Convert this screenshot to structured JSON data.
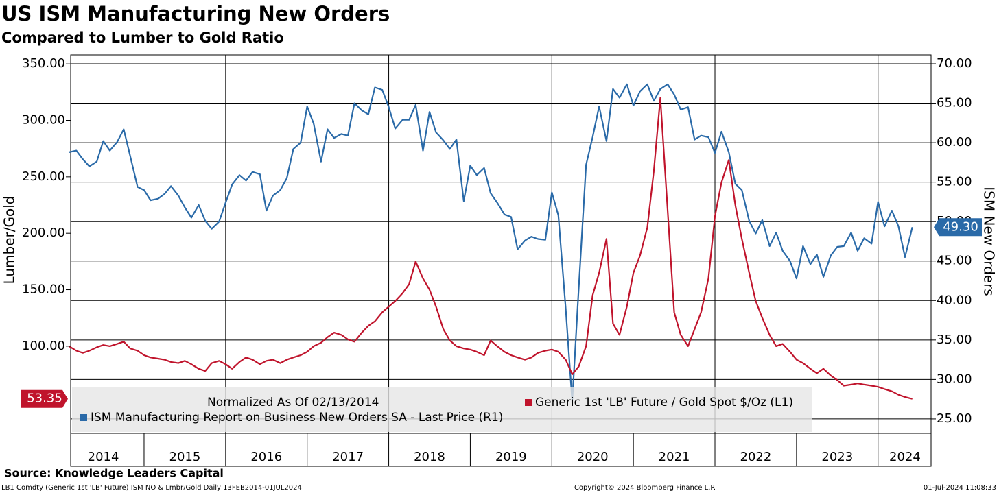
{
  "chart_data": {
    "type": "line",
    "title": "US ISM Manufacturing New Orders",
    "subtitle": "Compared to Lumber to Gold Ratio",
    "y_label": "Lumber/Gold",
    "y2_label": "ISM New Orders",
    "legend_note": "Normalized As Of 02/13/2014",
    "source": "Source: Knowledge Leaders Capital",
    "footer_left": "LB1 Comdty (Generic 1st 'LB' Future) ISM NO & Lmbr/Gold  Daily 13FEB2014-01JUL2024",
    "footer_center": "Copyright© 2024 Bloomberg Finance L.P.",
    "footer_right": "01-Jul-2024 11:08:33",
    "x": [
      2014.08,
      2014.17,
      2014.25,
      2014.33,
      2014.42,
      2014.5,
      2014.58,
      2014.67,
      2014.75,
      2014.83,
      2014.92,
      2015,
      2015.08,
      2015.17,
      2015.25,
      2015.33,
      2015.42,
      2015.5,
      2015.58,
      2015.67,
      2015.75,
      2015.83,
      2015.92,
      2016,
      2016.08,
      2016.17,
      2016.25,
      2016.33,
      2016.42,
      2016.5,
      2016.58,
      2016.67,
      2016.75,
      2016.83,
      2016.92,
      2017,
      2017.08,
      2017.17,
      2017.25,
      2017.33,
      2017.42,
      2017.5,
      2017.58,
      2017.67,
      2017.75,
      2017.83,
      2017.92,
      2018,
      2018.08,
      2018.17,
      2018.25,
      2018.33,
      2018.42,
      2018.5,
      2018.58,
      2018.67,
      2018.75,
      2018.83,
      2018.92,
      2019,
      2019.08,
      2019.17,
      2019.25,
      2019.33,
      2019.42,
      2019.5,
      2019.58,
      2019.67,
      2019.75,
      2019.83,
      2019.92,
      2020,
      2020.08,
      2020.17,
      2020.25,
      2020.33,
      2020.42,
      2020.5,
      2020.58,
      2020.67,
      2020.75,
      2020.83,
      2020.92,
      2021,
      2021.08,
      2021.17,
      2021.25,
      2021.33,
      2021.42,
      2021.5,
      2021.58,
      2021.67,
      2021.75,
      2021.83,
      2021.92,
      2022,
      2022.08,
      2022.17,
      2022.25,
      2022.33,
      2022.42,
      2022.5,
      2022.58,
      2022.67,
      2022.75,
      2022.83,
      2022.92,
      2023,
      2023.08,
      2023.17,
      2023.25,
      2023.33,
      2023.42,
      2023.5,
      2023.58,
      2023.67,
      2023.75,
      2023.83,
      2023.92,
      2024,
      2024.08,
      2024.17,
      2024.25,
      2024.33,
      2024.42
    ],
    "series": [
      {
        "name": "ISM Manufacturing Report on Business New Orders SA - Last Price (R1)",
        "color": "#2a6aa8",
        "axis": "y2",
        "last_label": "49.30",
        "values": [
          58.8,
          59.0,
          57.9,
          57.0,
          57.6,
          60.2,
          59.0,
          60.1,
          61.7,
          58.3,
          54.4,
          54.0,
          52.7,
          52.9,
          53.5,
          54.5,
          53.3,
          51.8,
          50.5,
          52.1,
          50.1,
          49.1,
          50.0,
          52.4,
          54.7,
          55.9,
          55.2,
          56.3,
          56.0,
          51.4,
          53.3,
          54.0,
          55.5,
          59.2,
          60.0,
          64.6,
          62.4,
          57.6,
          61.7,
          60.6,
          61.1,
          60.9,
          65.0,
          64.1,
          63.6,
          67.0,
          66.7,
          64.5,
          61.8,
          62.9,
          62.9,
          64.8,
          59.0,
          63.9,
          61.3,
          60.3,
          59.2,
          60.4,
          52.6,
          57.1,
          55.9,
          56.8,
          53.6,
          52.4,
          50.9,
          50.6,
          46.5,
          47.6,
          48.1,
          47.8,
          47.7,
          53.7,
          50.8,
          39.0,
          27.2,
          41.6,
          57.2,
          60.7,
          64.6,
          60.2,
          66.8,
          65.7,
          67.4,
          64.7,
          66.5,
          67.4,
          65.3,
          66.8,
          67.4,
          66.1,
          64.2,
          64.5,
          60.4,
          60.9,
          60.7,
          58.7,
          61.4,
          58.8,
          54.8,
          54.0,
          50.1,
          48.5,
          50.2,
          46.9,
          48.6,
          46.3,
          45.0,
          42.8,
          46.9,
          44.6,
          45.8,
          43.0,
          45.7,
          46.8,
          46.9,
          48.6,
          46.3,
          47.9,
          47.2,
          52.5,
          49.4,
          51.4,
          49.4,
          45.5,
          49.3
        ]
      },
      {
        "name": "Generic 1st 'LB' Future / Gold Spot $/Oz (L1)",
        "color": "#c0142c",
        "axis": "y",
        "last_label": "53.35",
        "values": [
          100,
          96,
          94,
          96,
          99,
          101,
          100,
          102,
          104,
          98,
          96,
          92,
          90,
          89,
          88,
          86,
          85,
          87,
          84,
          80,
          78,
          85,
          87,
          84,
          80,
          86,
          90,
          88,
          84,
          87,
          88,
          85,
          88,
          90,
          92,
          95,
          100,
          103,
          108,
          112,
          110,
          106,
          104,
          112,
          118,
          122,
          130,
          135,
          140,
          147,
          155,
          175,
          160,
          150,
          135,
          115,
          105,
          100,
          98,
          97,
          95,
          92,
          105,
          100,
          95,
          92,
          90,
          88,
          90,
          94,
          96,
          97,
          95,
          88,
          75,
          82,
          100,
          145,
          165,
          195,
          120,
          110,
          135,
          165,
          180,
          205,
          255,
          320,
          220,
          130,
          110,
          100,
          115,
          130,
          160,
          215,
          245,
          265,
          225,
          195,
          165,
          140,
          125,
          110,
          100,
          102,
          95,
          88,
          85,
          80,
          76,
          80,
          74,
          70,
          65,
          66,
          67,
          66,
          65,
          64,
          62,
          60,
          57,
          55,
          53.35
        ]
      }
    ],
    "xlim": [
      2014.1,
      2024.65
    ],
    "xticks": [
      {
        "value": 2014.5,
        "label": "2014"
      },
      {
        "value": 2015.5,
        "label": "2015"
      },
      {
        "value": 2016.5,
        "label": "2016"
      },
      {
        "value": 2017.5,
        "label": "2017"
      },
      {
        "value": 2018.5,
        "label": "2018"
      },
      {
        "value": 2019.5,
        "label": "2019"
      },
      {
        "value": 2020.5,
        "label": "2020"
      },
      {
        "value": 2021.5,
        "label": "2021"
      },
      {
        "value": 2022.5,
        "label": "2022"
      },
      {
        "value": 2023.5,
        "label": "2023"
      },
      {
        "value": 2024.33,
        "label": "2024"
      }
    ],
    "year_marks": [
      2015,
      2016,
      2017,
      2018,
      2019,
      2020,
      2021,
      2022,
      2023,
      2024
    ],
    "xgrid": [
      2016,
      2018,
      2020,
      2022,
      2024
    ],
    "ylim": [
      22.8,
      358
    ],
    "yticks": [
      {
        "value": 100,
        "label": "100.00"
      },
      {
        "value": 150,
        "label": "150.00"
      },
      {
        "value": 200,
        "label": "200.00"
      },
      {
        "value": 250,
        "label": "250.00"
      },
      {
        "value": 300,
        "label": "300.00"
      },
      {
        "value": 350,
        "label": "350.00"
      }
    ],
    "y2lim": [
      23.17,
      71.13
    ],
    "y2ticks": [
      {
        "value": 25,
        "label": "25.00"
      },
      {
        "value": 30,
        "label": "30.00"
      },
      {
        "value": 35,
        "label": "35.00"
      },
      {
        "value": 40,
        "label": "40.00"
      },
      {
        "value": 45,
        "label": "45.00"
      },
      {
        "value": 50,
        "label": "50.00"
      },
      {
        "value": 55,
        "label": "55.00"
      },
      {
        "value": 60,
        "label": "60.00"
      },
      {
        "value": 65,
        "label": "65.00"
      },
      {
        "value": 70,
        "label": "70.00"
      }
    ],
    "grid": true
  }
}
